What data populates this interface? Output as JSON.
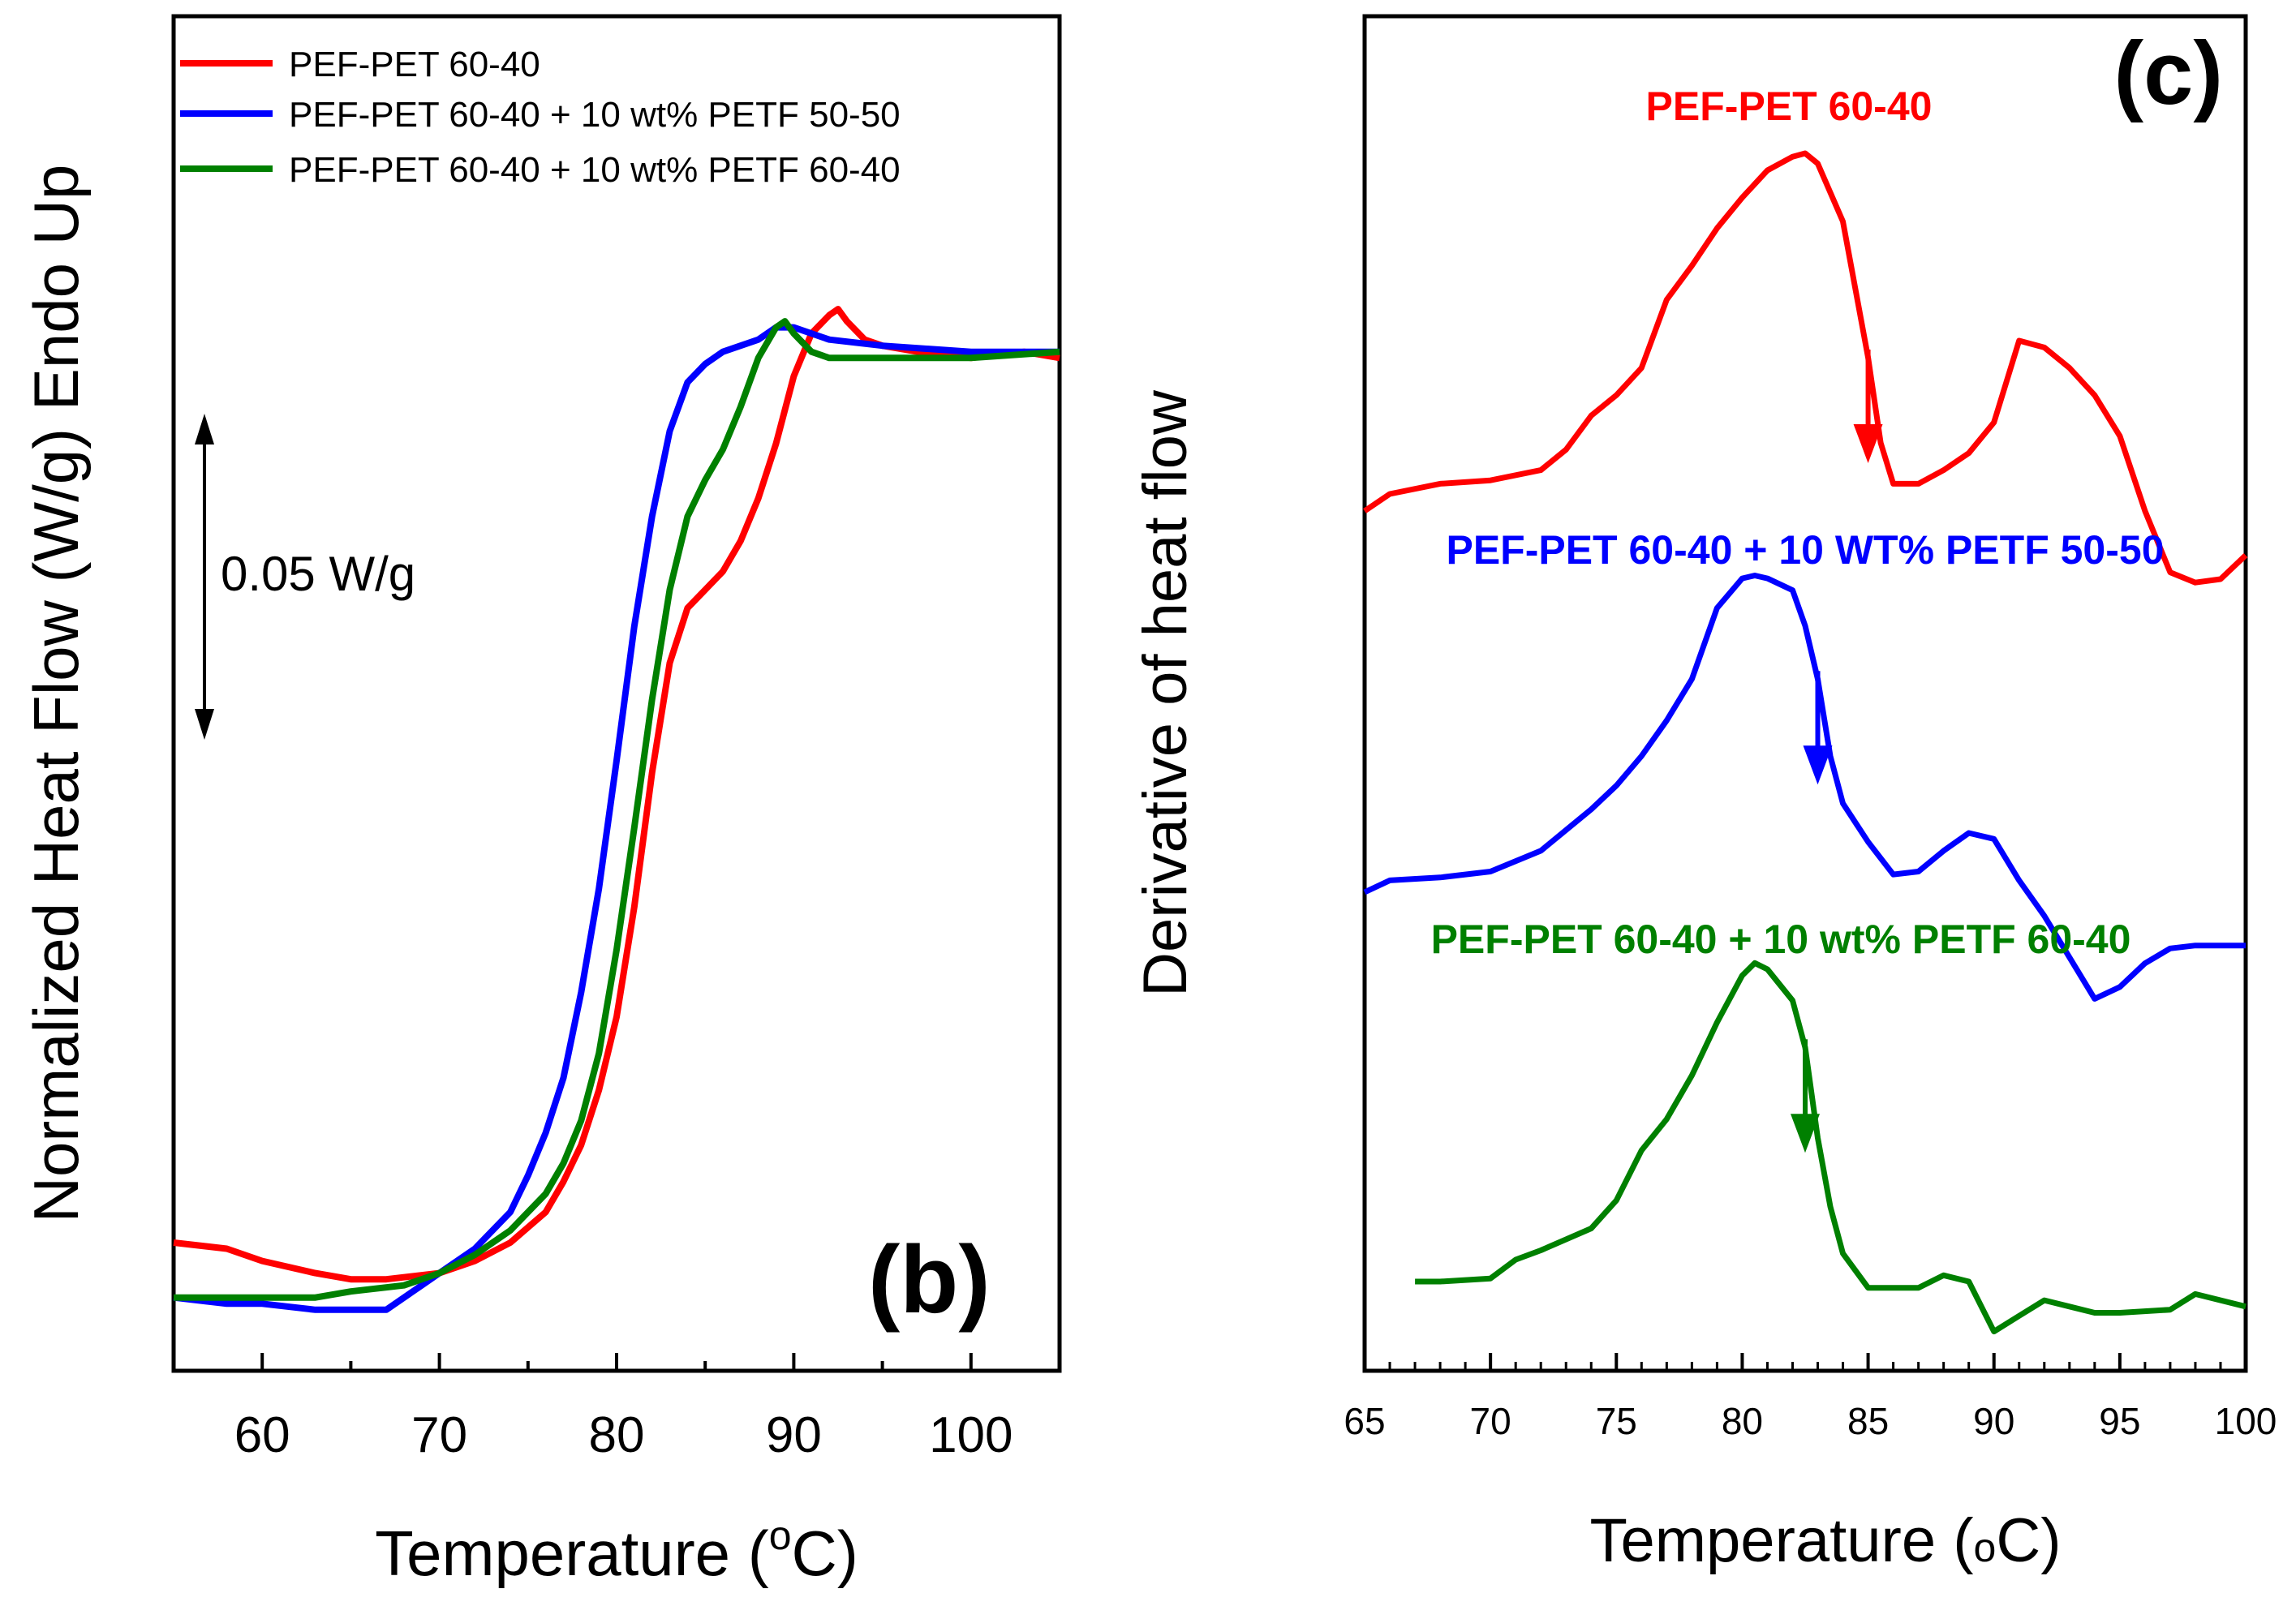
{
  "chart_data": [
    {
      "panel_label": "(b)",
      "type": "line",
      "xlabel_main": "Temperature (",
      "xlabel_sup": "o",
      "xlabel_end": "C)",
      "ylabel": "Normalized Heat Flow (W/g) Endo Up",
      "xlim": [
        55,
        105
      ],
      "xticks": [
        "60",
        "70",
        "80",
        "90",
        "100"
      ],
      "scale_bar_label": "0.05 W/g",
      "scale_bar_value": 0.05,
      "legend": [
        "PEF-PET 60-40",
        "PEF-PET 60-40 + 10 wt% PETF 50-50",
        "PEF-PET 60-40 + 10 wt% PETF 60-40"
      ],
      "series": [
        {
          "name": "PEF-PET 60-40",
          "color": "#ff0000",
          "x": [
            55,
            58,
            60,
            63,
            65,
            67,
            70,
            72,
            74,
            76,
            77,
            78,
            79,
            80,
            81,
            82,
            83,
            84,
            85,
            86,
            87,
            88,
            89,
            90,
            91,
            92,
            92.5,
            93,
            94,
            95,
            97,
            100,
            103,
            105
          ],
          "y": [
            0.009,
            0.008,
            0.006,
            0.004,
            0.003,
            0.003,
            0.004,
            0.006,
            0.009,
            0.014,
            0.019,
            0.025,
            0.034,
            0.046,
            0.064,
            0.086,
            0.104,
            0.113,
            0.116,
            0.119,
            0.124,
            0.131,
            0.14,
            0.151,
            0.158,
            0.161,
            0.162,
            0.16,
            0.157,
            0.156,
            0.155,
            0.154,
            0.155,
            0.154
          ]
        },
        {
          "name": "PEF-PET 60-40 + 10 wt% PETF 50-50",
          "color": "#0000ff",
          "x": [
            55,
            58,
            60,
            63,
            65,
            67,
            69,
            70,
            72,
            74,
            75,
            76,
            77,
            78,
            79,
            80,
            81,
            82,
            83,
            84,
            85,
            86,
            88,
            89,
            90,
            92,
            95,
            100,
            105
          ],
          "y": [
            0.0,
            -0.001,
            -0.001,
            -0.002,
            -0.002,
            -0.002,
            0.002,
            0.004,
            0.008,
            0.014,
            0.02,
            0.027,
            0.036,
            0.05,
            0.067,
            0.088,
            0.11,
            0.128,
            0.142,
            0.15,
            0.153,
            0.155,
            0.157,
            0.159,
            0.159,
            0.157,
            0.156,
            0.155,
            0.155
          ]
        },
        {
          "name": "PEF-PET 60-40 + 10 wt% PETF 60-40",
          "color": "#008000",
          "x": [
            55,
            58,
            60,
            63,
            65,
            68,
            70,
            72,
            74,
            76,
            77,
            78,
            79,
            80,
            81,
            82,
            83,
            84,
            85,
            86,
            87,
            88,
            89,
            89.5,
            90,
            91,
            92,
            95,
            100,
            105
          ],
          "y": [
            0.0,
            0.0,
            0.0,
            0.0,
            0.001,
            0.002,
            0.004,
            0.007,
            0.011,
            0.017,
            0.022,
            0.029,
            0.04,
            0.057,
            0.077,
            0.098,
            0.116,
            0.128,
            0.134,
            0.139,
            0.146,
            0.154,
            0.159,
            0.16,
            0.158,
            0.155,
            0.154,
            0.154,
            0.154,
            0.155
          ]
        }
      ]
    },
    {
      "panel_label": "(c)",
      "type": "line",
      "xlabel_main": "Temperature (",
      "xlabel_sup": "o",
      "xlabel_end": "C)",
      "ylabel": "Derivative of heat flow",
      "xlim": [
        65,
        100
      ],
      "xticks": [
        "65",
        "70",
        "75",
        "80",
        "85",
        "90",
        "95",
        "100"
      ],
      "y_units": "arbitrary (curves vertically offset)",
      "series": [
        {
          "name": "PEF-PET 60-40",
          "label": "PEF-PET 60-40",
          "color": "#ff0000",
          "arrow_at_x": 85,
          "x": [
            65,
            66,
            68,
            70,
            72,
            73,
            74,
            75,
            76,
            77,
            78,
            79,
            80,
            81,
            82,
            82.5,
            83,
            84,
            85,
            85.5,
            86,
            87,
            88,
            89,
            90,
            91,
            92,
            93,
            94,
            95,
            96,
            97,
            98,
            99,
            100
          ],
          "y": [
            0.0,
            0.05,
            0.08,
            0.09,
            0.12,
            0.18,
            0.28,
            0.34,
            0.42,
            0.62,
            0.72,
            0.83,
            0.92,
            1.0,
            1.04,
            1.05,
            1.02,
            0.85,
            0.45,
            0.2,
            0.08,
            0.08,
            0.12,
            0.17,
            0.26,
            0.5,
            0.48,
            0.42,
            0.34,
            0.22,
            0.0,
            -0.18,
            -0.21,
            -0.2,
            -0.13
          ]
        },
        {
          "name": "PEF-PET 60-40 + 10 wt% PETF 50-50",
          "label": "PEF-PET 60-40 + 10 WT% PETF 50-50",
          "color": "#0000ff",
          "arrow_at_x": 83,
          "x": [
            65,
            66,
            68,
            70,
            72,
            74,
            75,
            76,
            77,
            78,
            79,
            80,
            80.5,
            81,
            82,
            82.5,
            83,
            83.5,
            84,
            85,
            86,
            87,
            88,
            89,
            90,
            91,
            92,
            93,
            94,
            95,
            96,
            97,
            98,
            100
          ],
          "y": [
            0.0,
            0.04,
            0.05,
            0.07,
            0.14,
            0.28,
            0.36,
            0.46,
            0.58,
            0.72,
            0.96,
            1.06,
            1.07,
            1.06,
            1.02,
            0.9,
            0.72,
            0.46,
            0.3,
            0.17,
            0.06,
            0.07,
            0.14,
            0.2,
            0.18,
            0.04,
            -0.08,
            -0.22,
            -0.36,
            -0.32,
            -0.24,
            -0.19,
            -0.18,
            -0.18
          ]
        },
        {
          "name": "PEF-PET 60-40 + 10 wt% PETF 60-40",
          "label": "PEF-PET 60-40 + 10 wt% PETF 60-40",
          "color": "#008000",
          "arrow_at_x": 82.5,
          "x": [
            67,
            68,
            70,
            71,
            72,
            74,
            75,
            76,
            77,
            78,
            79,
            80,
            80.5,
            81,
            82,
            82.5,
            83,
            83.5,
            84,
            85,
            86,
            87,
            88,
            89,
            89.5,
            90,
            91,
            92,
            93,
            94,
            95,
            97,
            98,
            100
          ],
          "y": [
            0.0,
            0.0,
            0.01,
            0.07,
            0.1,
            0.17,
            0.26,
            0.42,
            0.52,
            0.66,
            0.83,
            0.98,
            1.02,
            1.0,
            0.9,
            0.75,
            0.46,
            0.24,
            0.09,
            -0.02,
            -0.02,
            -0.02,
            0.02,
            0.0,
            -0.08,
            -0.16,
            -0.11,
            -0.06,
            -0.08,
            -0.1,
            -0.1,
            -0.09,
            -0.04,
            -0.08
          ]
        }
      ]
    }
  ]
}
